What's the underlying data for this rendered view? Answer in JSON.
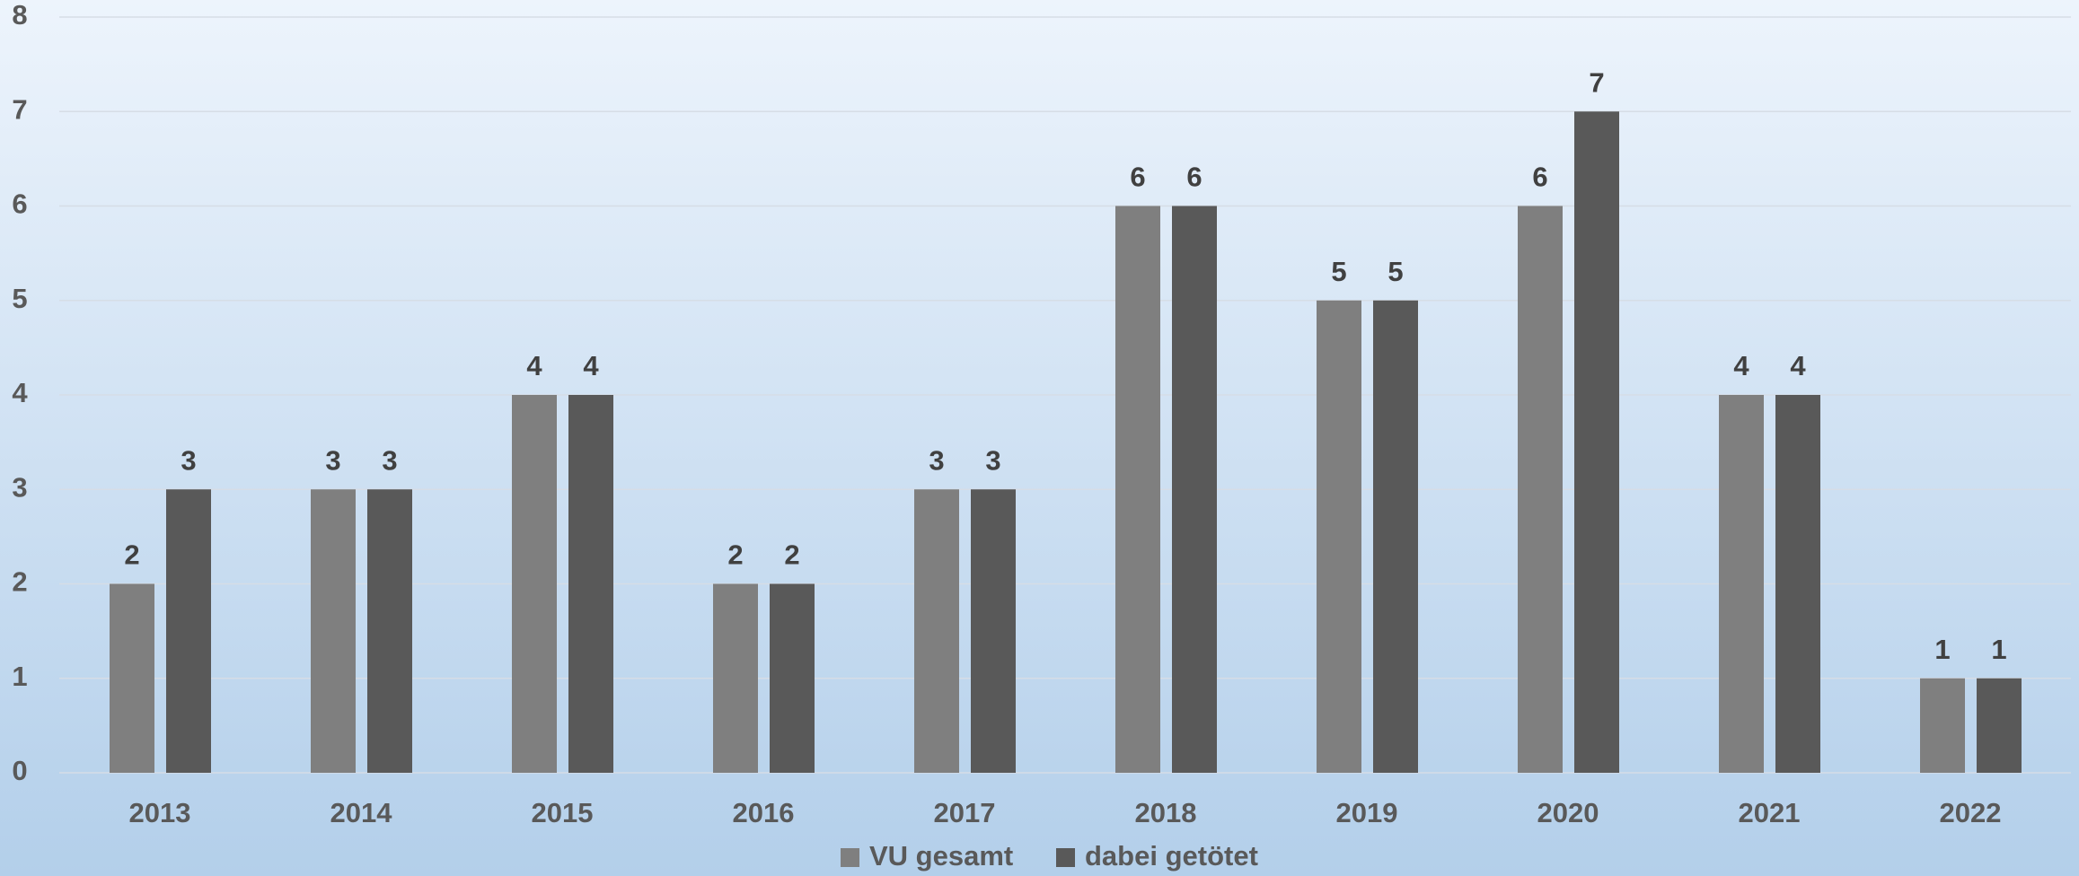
{
  "chart_data": {
    "type": "bar",
    "categories": [
      "2013",
      "2014",
      "2015",
      "2016",
      "2017",
      "2018",
      "2019",
      "2020",
      "2021",
      "2022"
    ],
    "series": [
      {
        "name": "VU gesamt",
        "color": "#7f7f7f",
        "values": [
          2,
          3,
          4,
          2,
          3,
          6,
          5,
          6,
          4,
          1
        ]
      },
      {
        "name": "dabei getötet",
        "color": "#595959",
        "values": [
          3,
          3,
          4,
          2,
          3,
          6,
          5,
          7,
          4,
          1
        ]
      }
    ],
    "ylim": [
      0,
      8
    ],
    "yticks": [
      0,
      1,
      2,
      3,
      4,
      5,
      6,
      7,
      8
    ],
    "grid": true,
    "legend": "bottom"
  }
}
